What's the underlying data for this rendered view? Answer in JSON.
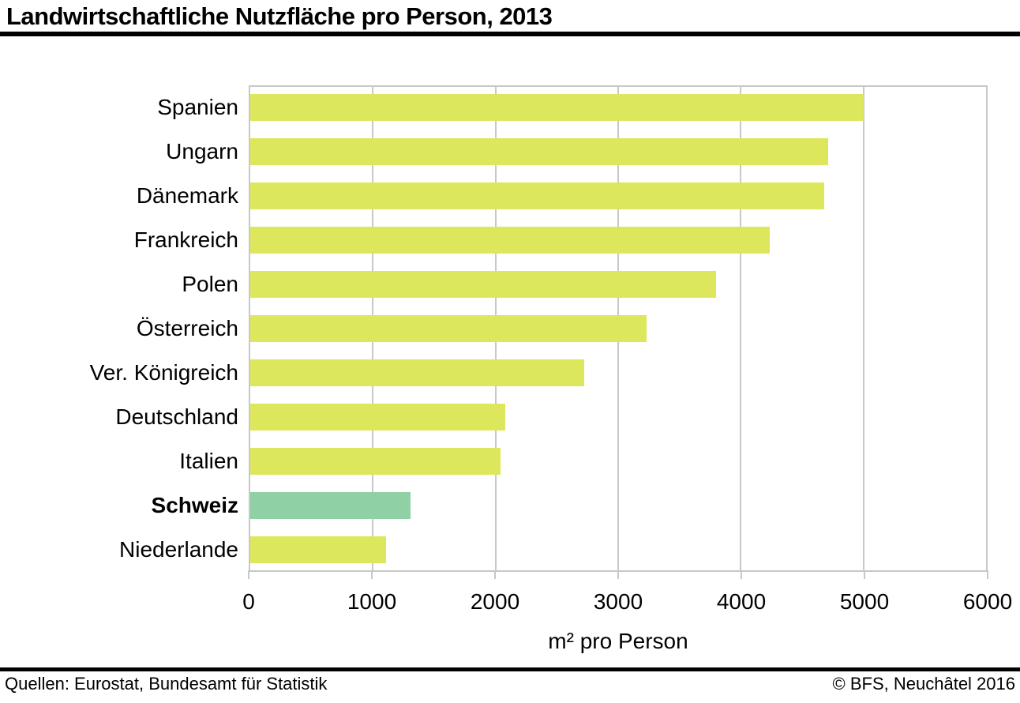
{
  "title": "Landwirtschaftliche Nutzfläche pro Person, 2013",
  "chart_data": {
    "type": "bar",
    "orientation": "horizontal",
    "title": "Landwirtschaftliche Nutzfläche pro Person, 2013",
    "categories": [
      "Spanien",
      "Ungarn",
      "Dänemark",
      "Frankreich",
      "Polen",
      "Österreich",
      "Ver. Königreich",
      "Deutschland",
      "Italien",
      "Schweiz",
      "Niederlande"
    ],
    "values": [
      4980,
      4690,
      4660,
      4220,
      3780,
      3220,
      2710,
      2070,
      2030,
      1300,
      1100
    ],
    "highlight_category": "Schweiz",
    "xlabel": "m² pro Person",
    "ylabel": "",
    "xlim": [
      0,
      6000
    ],
    "xticks": [
      0,
      1000,
      2000,
      3000,
      4000,
      5000,
      6000
    ],
    "grid": true,
    "legend": "none",
    "bar_color": "#dce75c",
    "highlight_color": "#8fd0a4",
    "grid_color": "#c8c8c8"
  },
  "footer": {
    "left": "Quellen: Eurostat, Bundesamt für Statistik",
    "right": "© BFS, Neuchâtel 2016"
  }
}
